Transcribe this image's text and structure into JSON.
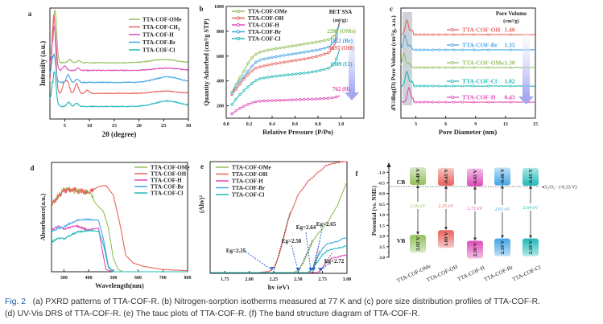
{
  "figure": {
    "caption_label": "Fig. 2",
    "caption_line1": "(a) PXRD patterns of TTA-COF-R. (b) Nitrogen-sorption isotherms measured at 77 K and (c) pore size distribution profiles of TTA-COF-R.",
    "caption_line2": "(d) UV-Vis DRS of TTA-COF-R. (e) The tauc plots of TTA-COF-R. (f) The band structure diagram of TTA-COF-R."
  },
  "colors": {
    "OMe": "#92c05a",
    "OH": "#e8625c",
    "CH3": "#e8625c",
    "H": "#e04ab8",
    "Br": "#42a6e6",
    "Cl": "#20b8b8",
    "arrow": "#2a6ad8"
  },
  "chart_data": [
    {
      "panel": "a",
      "type": "line",
      "title": "",
      "xlabel": "2θ (degree)",
      "ylabel": "Intensity (a.u.)",
      "xlim": [
        2,
        30
      ],
      "xticks": [
        5,
        10,
        15,
        20,
        25,
        30
      ],
      "ylim": [
        0,
        10
      ],
      "legend_position": "top-right",
      "series": [
        {
          "name": "TTA-COF-OMe",
          "key": "OMe",
          "offset": 5.0,
          "peaks": [
            [
              3.0,
              4.8
            ],
            [
              6.0,
              0.3
            ],
            [
              7.8,
              0.2
            ],
            [
              25.0,
              0.3
            ]
          ]
        },
        {
          "name": "TTA-COF-CH3",
          "key": "CH3",
          "offset": 2.2,
          "peaks": [
            [
              2.8,
              7.2
            ],
            [
              4.9,
              0.9
            ],
            [
              5.6,
              1.0
            ],
            [
              7.4,
              0.9
            ],
            [
              9.6,
              0.3
            ],
            [
              25.4,
              0.2
            ]
          ]
        },
        {
          "name": "TTA-COF-H",
          "key": "H",
          "offset": 4.3,
          "peaks": [
            [
              2.9,
              4.0
            ],
            [
              5.0,
              0.4
            ],
            [
              7.7,
              0.2
            ],
            [
              25.5,
              0.2
            ]
          ]
        },
        {
          "name": "TTA-COF-Br",
          "key": "Br",
          "offset": 3.2,
          "peaks": [
            [
              2.8,
              2.6
            ],
            [
              5.7,
              0.7
            ],
            [
              7.5,
              0.3
            ],
            [
              25.8,
              0.5
            ]
          ]
        },
        {
          "name": "TTA-COF-Cl",
          "key": "Cl",
          "offset": 1.0,
          "peaks": [
            [
              2.9,
              3.2
            ],
            [
              5.8,
              0.4
            ],
            [
              7.4,
              0.3
            ],
            [
              25.8,
              0.5
            ]
          ]
        }
      ]
    },
    {
      "panel": "b",
      "type": "line",
      "title": "",
      "xlabel": "Relative Pressure (P/Po)",
      "ylabel": "Quantity Adsorbed (cm³/g STP)",
      "xlim": [
        0.0,
        1.2
      ],
      "xticks": [
        0.0,
        0.2,
        0.4,
        0.6,
        0.8,
        1.0
      ],
      "ylim": [
        100,
        1000
      ],
      "yticks": [
        200,
        400,
        600,
        800,
        1000
      ],
      "legend_position": "top-left",
      "annotation_title": "BET SSA",
      "annotation_unit": "(m²/g):",
      "series": [
        {
          "name": "TTA-COF-OMe",
          "key": "OMe",
          "bet": "2200 (OMe)",
          "x": [
            0.05,
            0.1,
            0.15,
            0.2,
            0.25,
            0.3,
            0.4,
            0.5,
            0.6,
            0.7,
            0.8,
            0.9,
            0.95,
            0.99
          ],
          "y": [
            310,
            400,
            470,
            560,
            610,
            635,
            655,
            670,
            685,
            700,
            715,
            735,
            770,
            880
          ]
        },
        {
          "name": "TTA-COF-OH",
          "key": "OH",
          "bet": "1697 (OH)",
          "x": [
            0.05,
            0.1,
            0.15,
            0.2,
            0.25,
            0.3,
            0.4,
            0.5,
            0.6,
            0.7,
            0.8,
            0.9,
            0.95,
            0.99
          ],
          "y": [
            290,
            350,
            410,
            460,
            500,
            515,
            535,
            550,
            565,
            580,
            600,
            630,
            700,
            900
          ]
        },
        {
          "name": "TTA-COF-H",
          "key": "H",
          "bet": "762 (H)",
          "x": [
            0.05,
            0.1,
            0.15,
            0.2,
            0.25,
            0.3,
            0.4,
            0.5,
            0.6,
            0.7,
            0.8,
            0.9,
            0.95,
            0.99
          ],
          "y": [
            135,
            170,
            195,
            215,
            232,
            238,
            242,
            245,
            248,
            252,
            255,
            262,
            268,
            280
          ]
        },
        {
          "name": "TTA-COF-Br",
          "key": "Br",
          "bet": "1922 (Br)",
          "x": [
            0.05,
            0.1,
            0.15,
            0.2,
            0.25,
            0.3,
            0.4,
            0.5,
            0.6,
            0.7,
            0.8,
            0.9,
            0.95,
            0.99
          ],
          "y": [
            300,
            380,
            430,
            490,
            545,
            570,
            590,
            605,
            620,
            635,
            650,
            675,
            730,
            870
          ]
        },
        {
          "name": "TTA-COF-Cl",
          "key": "Cl",
          "bet": "1389 (Cl)",
          "x": [
            0.05,
            0.1,
            0.15,
            0.2,
            0.25,
            0.3,
            0.4,
            0.5,
            0.6,
            0.7,
            0.8,
            0.9,
            0.95,
            0.99
          ],
          "y": [
            210,
            270,
            320,
            360,
            400,
            420,
            435,
            445,
            455,
            465,
            480,
            505,
            550,
            660
          ]
        }
      ]
    },
    {
      "panel": "c",
      "type": "line",
      "title": "",
      "xlabel": "Pore Diameter (nm)",
      "ylabel": "dV/dlog(D) Pore Volume (cm³/g, a.u.)",
      "xlim": [
        1.5,
        15
      ],
      "xticks": [
        3,
        6,
        9,
        12,
        15
      ],
      "annotation_title": "Pore Volume",
      "annotation_unit": "(cm³/g)",
      "series": [
        {
          "name": "TTA-COF-OH",
          "key": "OH",
          "pore_volume": "1.40",
          "peak_nm": 2.1
        },
        {
          "name": "TTA-COF-Br",
          "key": "Br",
          "pore_volume": "1.35",
          "peak_nm": 1.9
        },
        {
          "name": "TTA-COF-OMe",
          "key": "OMe",
          "pore_volume": "1.30",
          "peak_nm": 1.8
        },
        {
          "name": "TTA-COF-Cl",
          "key": "Cl",
          "pore_volume": "1.02",
          "peak_nm": 2.1
        },
        {
          "name": "TTA-COF-H",
          "key": "H",
          "pore_volume": "0.43",
          "peak_nm": 2.3
        }
      ]
    },
    {
      "panel": "d",
      "type": "line",
      "title": "",
      "xlabel": "Wavelength(nm)",
      "ylabel": "Absorbance(a.u.)",
      "xlim": [
        250,
        800
      ],
      "xticks": [
        300,
        400,
        500,
        600,
        700,
        800
      ],
      "ylim": [
        0,
        1
      ],
      "legend_position": "top-right",
      "series": [
        {
          "name": "TTA-COF-OMe",
          "key": "OMe",
          "x": [
            250,
            300,
            350,
            400,
            430,
            460,
            480,
            500,
            520,
            540,
            800
          ],
          "y": [
            0.62,
            0.75,
            0.74,
            0.73,
            0.62,
            0.55,
            0.4,
            0.12,
            0.02,
            0.0,
            0.0
          ]
        },
        {
          "name": "TTA-COF-OH",
          "key": "OH",
          "x": [
            250,
            300,
            350,
            400,
            440,
            470,
            500,
            530,
            550,
            580,
            620,
            700,
            800
          ],
          "y": [
            0.62,
            0.74,
            0.75,
            0.72,
            0.78,
            0.79,
            0.7,
            0.4,
            0.15,
            0.08,
            0.05,
            0.02,
            0.01
          ]
        },
        {
          "name": "TTA-COF-H",
          "key": "H",
          "x": [
            250,
            280,
            300,
            350,
            400,
            440,
            455,
            470,
            500,
            800
          ],
          "y": [
            0.38,
            0.42,
            0.39,
            0.42,
            0.38,
            0.4,
            0.2,
            0.02,
            0.0,
            0.0
          ]
        },
        {
          "name": "TTA-COF-Br",
          "key": "Br",
          "x": [
            250,
            280,
            300,
            350,
            400,
            440,
            460,
            480,
            500,
            800
          ],
          "y": [
            0.37,
            0.4,
            0.41,
            0.47,
            0.48,
            0.47,
            0.3,
            0.05,
            0.0,
            0.0
          ]
        },
        {
          "name": "TTA-COF-Cl",
          "key": "Cl",
          "x": [
            250,
            280,
            300,
            350,
            400,
            440,
            460,
            480,
            500,
            800
          ],
          "y": [
            0.27,
            0.31,
            0.3,
            0.36,
            0.38,
            0.37,
            0.25,
            0.04,
            0.0,
            0.0
          ]
        }
      ]
    },
    {
      "panel": "e",
      "type": "line",
      "title": "",
      "xlabel": "hv (eV)",
      "ylabel": "(Ahv)²",
      "xlim": [
        1.6,
        3.0
      ],
      "xticks": [
        1.75,
        2.0,
        2.25,
        2.5,
        2.75,
        3.0
      ],
      "ylim": [
        0,
        1
      ],
      "legend_position": "top-left",
      "series": [
        {
          "name": "TTA-COF-OMe",
          "key": "OMe",
          "x": [
            1.6,
            2.45,
            2.5,
            2.55,
            2.6,
            2.65,
            2.7,
            2.8,
            2.9,
            3.0
          ],
          "y": [
            0.0,
            0.0,
            0.02,
            0.08,
            0.18,
            0.28,
            0.35,
            0.45,
            0.6,
            0.82
          ]
        },
        {
          "name": "TTA-COF-OH",
          "key": "OH",
          "x": [
            1.6,
            2.1,
            2.2,
            2.25,
            2.3,
            2.35,
            2.4,
            2.5,
            2.6,
            2.7,
            2.8,
            2.9,
            3.0
          ],
          "y": [
            0.0,
            0.0,
            0.01,
            0.04,
            0.14,
            0.3,
            0.48,
            0.7,
            0.82,
            0.9,
            0.97,
            0.99,
            1.0
          ]
        },
        {
          "name": "TTA-COF-H",
          "key": "H",
          "x": [
            1.6,
            2.7,
            2.75,
            2.8,
            2.85,
            2.9,
            3.0
          ],
          "y": [
            0.0,
            0.0,
            0.04,
            0.1,
            0.13,
            0.14,
            0.16
          ]
        },
        {
          "name": "TTA-COF-Br",
          "key": "Br",
          "x": [
            1.6,
            2.6,
            2.65,
            2.7,
            2.75,
            2.8,
            2.9,
            3.0
          ],
          "y": [
            0.0,
            0.0,
            0.04,
            0.14,
            0.22,
            0.26,
            0.28,
            0.32
          ]
        },
        {
          "name": "TTA-COF-Cl",
          "key": "Cl",
          "x": [
            1.6,
            2.6,
            2.65,
            2.7,
            2.75,
            2.8,
            2.9,
            3.0
          ],
          "y": [
            0.0,
            0.0,
            0.03,
            0.1,
            0.16,
            0.2,
            0.22,
            0.24
          ]
        }
      ],
      "annotations": [
        {
          "text": "Eg=2.25",
          "x": 2.25
        },
        {
          "text": "Eg=2.50",
          "x": 2.5
        },
        {
          "text": "Eg=2.64",
          "x": 2.64
        },
        {
          "text": "Eg=2.65",
          "x": 2.65
        },
        {
          "text": "Eg=2.72",
          "x": 2.72
        }
      ]
    },
    {
      "panel": "f",
      "type": "bar",
      "title": "",
      "ylabel": "Potential (vs. NHE)",
      "ylim": [
        -1.2,
        3.0
      ],
      "yticks": [
        -1.0,
        -0.5,
        0.0,
        0.5,
        1.0,
        1.5,
        2.0,
        2.5,
        3.0
      ],
      "ytick_labels": [
        "-1.0",
        "-0.5",
        "0.0",
        "0.5",
        "1.0",
        "1.5",
        "2.0",
        "2.5",
        "3.0"
      ],
      "cb_label": "CB",
      "vb_label": "VB",
      "reference_line": {
        "value": -0.33,
        "label": "O₂/O₂⁻ (-0.33 V)"
      },
      "categories": [
        "TTA-COF-OMe",
        "TTA-COF-OH",
        "TTA-COF-H",
        "TTA-COF-Br",
        "TTA-COF-Cl"
      ],
      "series": [
        {
          "name": "TTA-COF-OMe",
          "key": "OMe",
          "cb": -0.48,
          "vb": 2.02,
          "cb_label": "-0.48 V",
          "vb_label": "2.02 V",
          "gap_label": "2.50 eV"
        },
        {
          "name": "TTA-COF-OH",
          "key": "OH",
          "cb": -0.45,
          "vb": 1.8,
          "cb_label": "-0.45 V",
          "vb_label": "1.80 V",
          "gap_label": "2.25 eV"
        },
        {
          "name": "TTA-COF-H",
          "key": "H",
          "cb": -0.42,
          "vb": 2.3,
          "cb_label": "-0.42 V",
          "vb_label": "2.30 V",
          "gap_label": "2.72 eV"
        },
        {
          "name": "TTA-COF-Br",
          "key": "Br",
          "cb": -0.46,
          "vb": 2.19,
          "cb_label": "-0.46 V",
          "vb_label": "2.19 V",
          "gap_label": "2.65 eV"
        },
        {
          "name": "TTA-COF-Cl",
          "key": "Cl",
          "cb": -0.45,
          "vb": 2.19,
          "cb_label": "-0.45 V",
          "vb_label": "2.19 V",
          "gap_label": "2.64 eV"
        }
      ]
    }
  ]
}
